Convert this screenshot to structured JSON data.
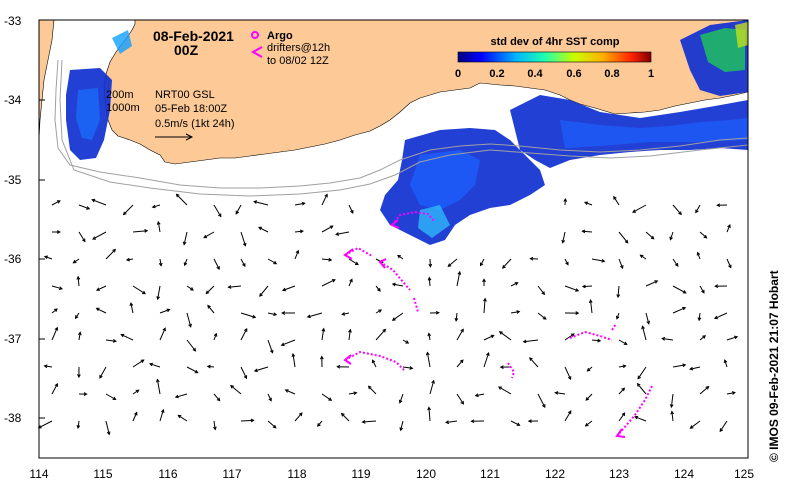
{
  "map": {
    "date": "08-Feb-2021",
    "time": "00Z",
    "argo_label": "Argo",
    "drifter_label_1": "drifters@12h",
    "drifter_label_2": "to 08/02 12Z",
    "colorbar": {
      "title": "std dev of 4hr SST comp",
      "ticks": [
        "0",
        "0.2",
        "0.4",
        "0.6",
        "0.8",
        "1"
      ]
    },
    "iso_200": "200m",
    "iso_1000": "1000m",
    "product_1": "NRT00 GSL",
    "product_2": "05-Feb 18:00Z",
    "scale_text": "0.5m/s (1kt 24h)",
    "credit": "© IMOS 09-Feb-2021 21:07 Hobart",
    "lat_labels": [
      "-33",
      "-34",
      "-35",
      "-36",
      "-37",
      "-38"
    ],
    "lon_labels": [
      "114",
      "115",
      "116",
      "117",
      "118",
      "119",
      "120",
      "121",
      "122",
      "123",
      "124",
      "125"
    ],
    "colors": {
      "land": "#fcc997",
      "drifter": "#ff00ff",
      "isobath": "#a0a0a0"
    }
  }
}
